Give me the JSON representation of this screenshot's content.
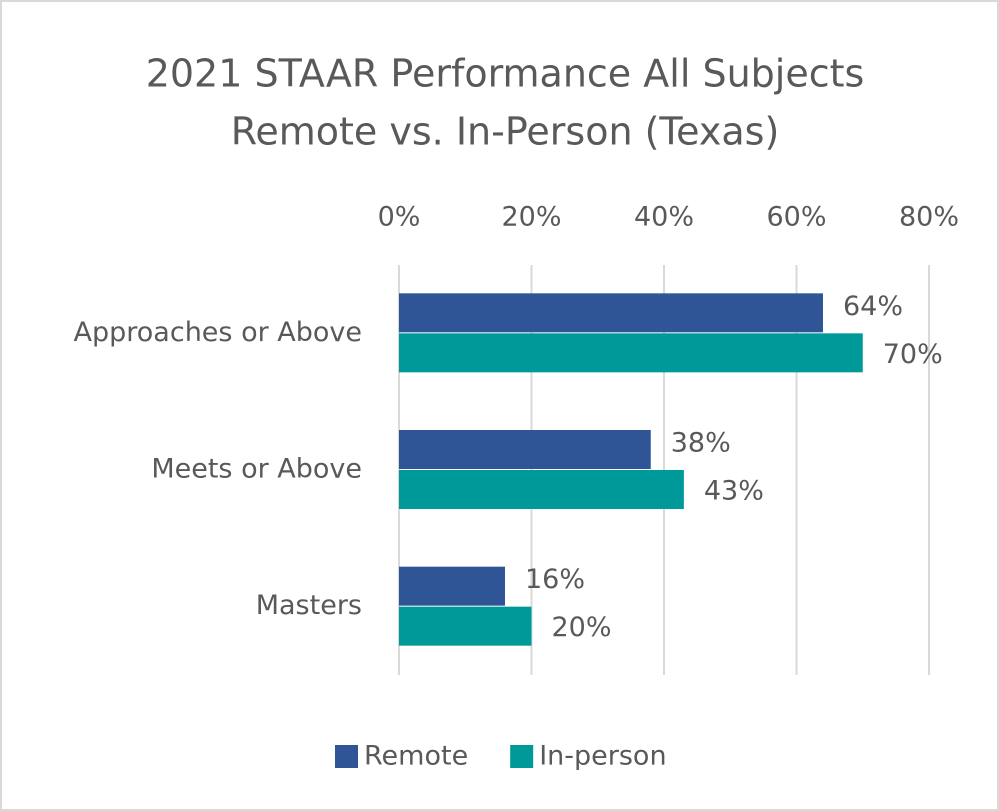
{
  "chart_data": {
    "type": "barh",
    "title": [
      "2021 STAAR Performance All Subjects",
      "Remote vs. In-Person (Texas)"
    ],
    "categories": [
      "Approaches or Above",
      "Meets or Above",
      "Masters"
    ],
    "series": [
      {
        "name": "Remote",
        "color": "#2f5597",
        "values": [
          64,
          38,
          16
        ],
        "value_labels": [
          "64%",
          "38%",
          "16%"
        ]
      },
      {
        "name": "In-person",
        "color": "#00999a",
        "values": [
          70,
          43,
          20
        ],
        "value_labels": [
          "70%",
          "43%",
          "20%"
        ]
      }
    ],
    "xlim": [
      0,
      80
    ],
    "xticks": [
      {
        "value": 0,
        "label": "0%"
      },
      {
        "value": 20,
        "label": "20%"
      },
      {
        "value": 40,
        "label": "40%"
      },
      {
        "value": 60,
        "label": "60%"
      },
      {
        "value": 80,
        "label": "80%"
      }
    ],
    "grid": true,
    "legend": "bottom"
  }
}
